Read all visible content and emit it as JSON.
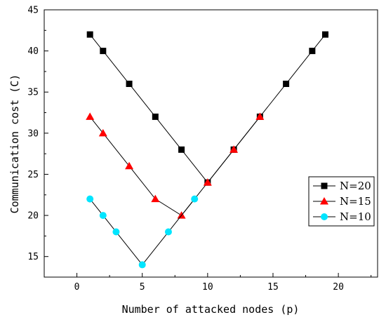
{
  "chart_data": {
    "type": "line",
    "xlabel": "Number of attacked nodes (p)",
    "ylabel": "Communication cost (C)",
    "xlim": [
      -2.5,
      23
    ],
    "ylim": [
      12.5,
      45
    ],
    "xticks": [
      0,
      5,
      10,
      15,
      20
    ],
    "yticks": [
      15,
      20,
      25,
      30,
      35,
      40,
      45
    ],
    "legend_position": "right",
    "series": [
      {
        "name": "N=20",
        "marker": "square",
        "color": "#000000",
        "points": [
          [
            1,
            42
          ],
          [
            2,
            40
          ],
          [
            4,
            36
          ],
          [
            6,
            32
          ],
          [
            8,
            28
          ],
          [
            10,
            24
          ],
          [
            12,
            28
          ],
          [
            14,
            32
          ],
          [
            16,
            36
          ],
          [
            18,
            40
          ],
          [
            19,
            42
          ]
        ]
      },
      {
        "name": "N=15",
        "marker": "triangle",
        "color": "#ff0000",
        "points": [
          [
            1,
            32
          ],
          [
            2,
            30
          ],
          [
            4,
            26
          ],
          [
            6,
            22
          ],
          [
            8,
            20
          ],
          [
            10,
            24
          ],
          [
            12,
            28
          ],
          [
            14,
            32
          ]
        ]
      },
      {
        "name": "N=10",
        "marker": "circle",
        "color": "#00e5ff",
        "points": [
          [
            1,
            22
          ],
          [
            2,
            20
          ],
          [
            3,
            18
          ],
          [
            5,
            14
          ],
          [
            7,
            18
          ],
          [
            9,
            22
          ]
        ]
      }
    ]
  }
}
